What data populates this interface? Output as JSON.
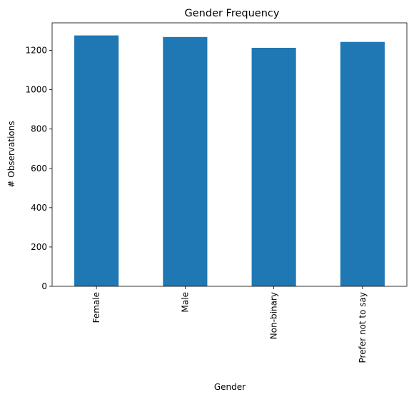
{
  "chart_data": {
    "type": "bar",
    "title": "Gender Frequency",
    "xlabel": "Gender",
    "ylabel": "# Observations",
    "categories": [
      "Female",
      "Male",
      "Non-binary",
      "Prefer not to say"
    ],
    "values": [
      1276,
      1268,
      1213,
      1243
    ],
    "ylim": [
      0,
      1340
    ],
    "yticks": [
      0,
      200,
      400,
      600,
      800,
      1000,
      1200
    ],
    "grid": false,
    "legend": "none",
    "bar_color": "#1f77b4"
  }
}
